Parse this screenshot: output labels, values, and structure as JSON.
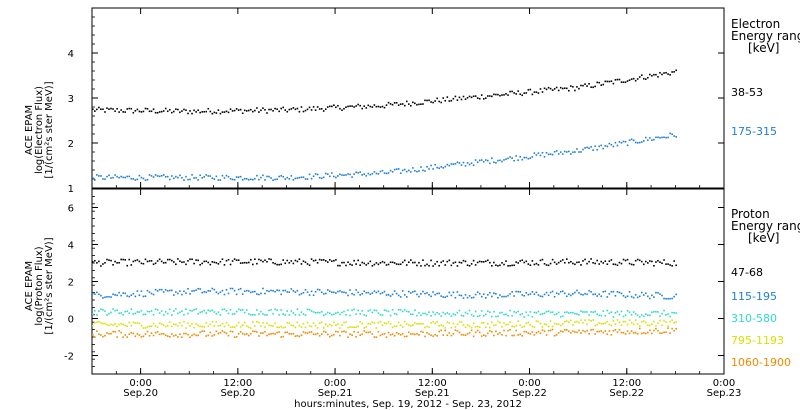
{
  "chart_data": [
    {
      "type": "scatter",
      "panel": "electron",
      "ylabel_lines": [
        "ACE EPAM",
        "log(Electron Flux)",
        "[1/(cm²s ster MeV)]"
      ],
      "ylim": [
        1,
        5
      ],
      "yticks": [
        "1",
        "2",
        "3",
        "4"
      ],
      "legend_title_lines": [
        "Electron",
        "Energy ranges",
        "[keV]"
      ],
      "x_start": "2012-09-19 18:00",
      "x_end": "2012-09-23 00:00",
      "series": [
        {
          "name": "38-53",
          "color": "#000000",
          "x": [
            "2012-09-19 18:00",
            "2012-09-20 06:00",
            "2012-09-20 18:00",
            "2012-09-21 06:00",
            "2012-09-21 18:00",
            "2012-09-22 06:00",
            "2012-09-22 18:00"
          ],
          "y": [
            2.75,
            2.72,
            2.75,
            2.85,
            3.05,
            3.25,
            3.6
          ]
        },
        {
          "name": "175-315",
          "color": "#1f7fd4",
          "x": [
            "2012-09-19 18:00",
            "2012-09-20 06:00",
            "2012-09-20 18:00",
            "2012-09-21 06:00",
            "2012-09-21 18:00",
            "2012-09-22 06:00",
            "2012-09-22 18:00"
          ],
          "y": [
            1.25,
            1.25,
            1.25,
            1.35,
            1.6,
            1.85,
            2.2
          ]
        }
      ]
    },
    {
      "type": "scatter",
      "panel": "proton",
      "ylabel_lines": [
        "ACE EPAM",
        "log(Proton Flux)",
        "[1/(cm²s ster MeV)]"
      ],
      "ylim": [
        -3,
        7
      ],
      "yticks": [
        "-2",
        "0",
        "2",
        "4",
        "6"
      ],
      "legend_title_lines": [
        "Proton",
        "Energy ranges",
        "[keV]"
      ],
      "x_start": "2012-09-19 18:00",
      "x_end": "2012-09-23 00:00",
      "series": [
        {
          "name": "47-68",
          "color": "#000000",
          "x": [
            "2012-09-19 18:00",
            "2012-09-20 06:00",
            "2012-09-20 18:00",
            "2012-09-21 06:00",
            "2012-09-21 18:00",
            "2012-09-22 06:00",
            "2012-09-22 18:00"
          ],
          "y": [
            3.05,
            3.1,
            3.1,
            3.05,
            3.05,
            3.1,
            3.05
          ]
        },
        {
          "name": "115-195",
          "color": "#1f7fd4",
          "x": [
            "2012-09-19 18:00",
            "2012-09-20 06:00",
            "2012-09-20 18:00",
            "2012-09-21 06:00",
            "2012-09-21 18:00",
            "2012-09-22 06:00",
            "2012-09-22 18:00"
          ],
          "y": [
            1.3,
            1.5,
            1.5,
            1.4,
            1.3,
            1.4,
            1.25
          ]
        },
        {
          "name": "310-580",
          "color": "#2fd9c8",
          "x": [
            "2012-09-19 18:00",
            "2012-09-20 06:00",
            "2012-09-20 18:00",
            "2012-09-21 06:00",
            "2012-09-21 18:00",
            "2012-09-22 06:00",
            "2012-09-22 18:00"
          ],
          "y": [
            0.4,
            0.4,
            0.4,
            0.35,
            0.3,
            0.3,
            0.3
          ]
        },
        {
          "name": "795-1193",
          "color": "#d8e000",
          "x": [
            "2012-09-19 18:00",
            "2012-09-20 06:00",
            "2012-09-20 18:00",
            "2012-09-21 06:00",
            "2012-09-21 18:00",
            "2012-09-22 06:00",
            "2012-09-22 18:00"
          ],
          "y": [
            -0.3,
            -0.3,
            -0.3,
            -0.3,
            -0.3,
            -0.2,
            -0.2
          ]
        },
        {
          "name": "1060-1900",
          "color": "#f08a00",
          "x": [
            "2012-09-19 18:00",
            "2012-09-20 06:00",
            "2012-09-20 18:00",
            "2012-09-21 06:00",
            "2012-09-21 18:00",
            "2012-09-22 06:00",
            "2012-09-22 18:00"
          ],
          "y": [
            -0.8,
            -0.8,
            -0.8,
            -0.8,
            -0.75,
            -0.7,
            -0.6
          ]
        }
      ]
    }
  ],
  "x_axis": {
    "ticks": [
      {
        "time": "0:00",
        "date": "Sep.20"
      },
      {
        "time": "12:00",
        "date": "Sep.20"
      },
      {
        "time": "0:00",
        "date": "Sep.21"
      },
      {
        "time": "12:00",
        "date": "Sep.21"
      },
      {
        "time": "0:00",
        "date": "Sep.22"
      },
      {
        "time": "12:00",
        "date": "Sep.22"
      },
      {
        "time": "0:00",
        "date": "Sep.23"
      }
    ],
    "label": "hours:minutes, Sep. 19, 2012 - Sep. 23, 2012"
  }
}
